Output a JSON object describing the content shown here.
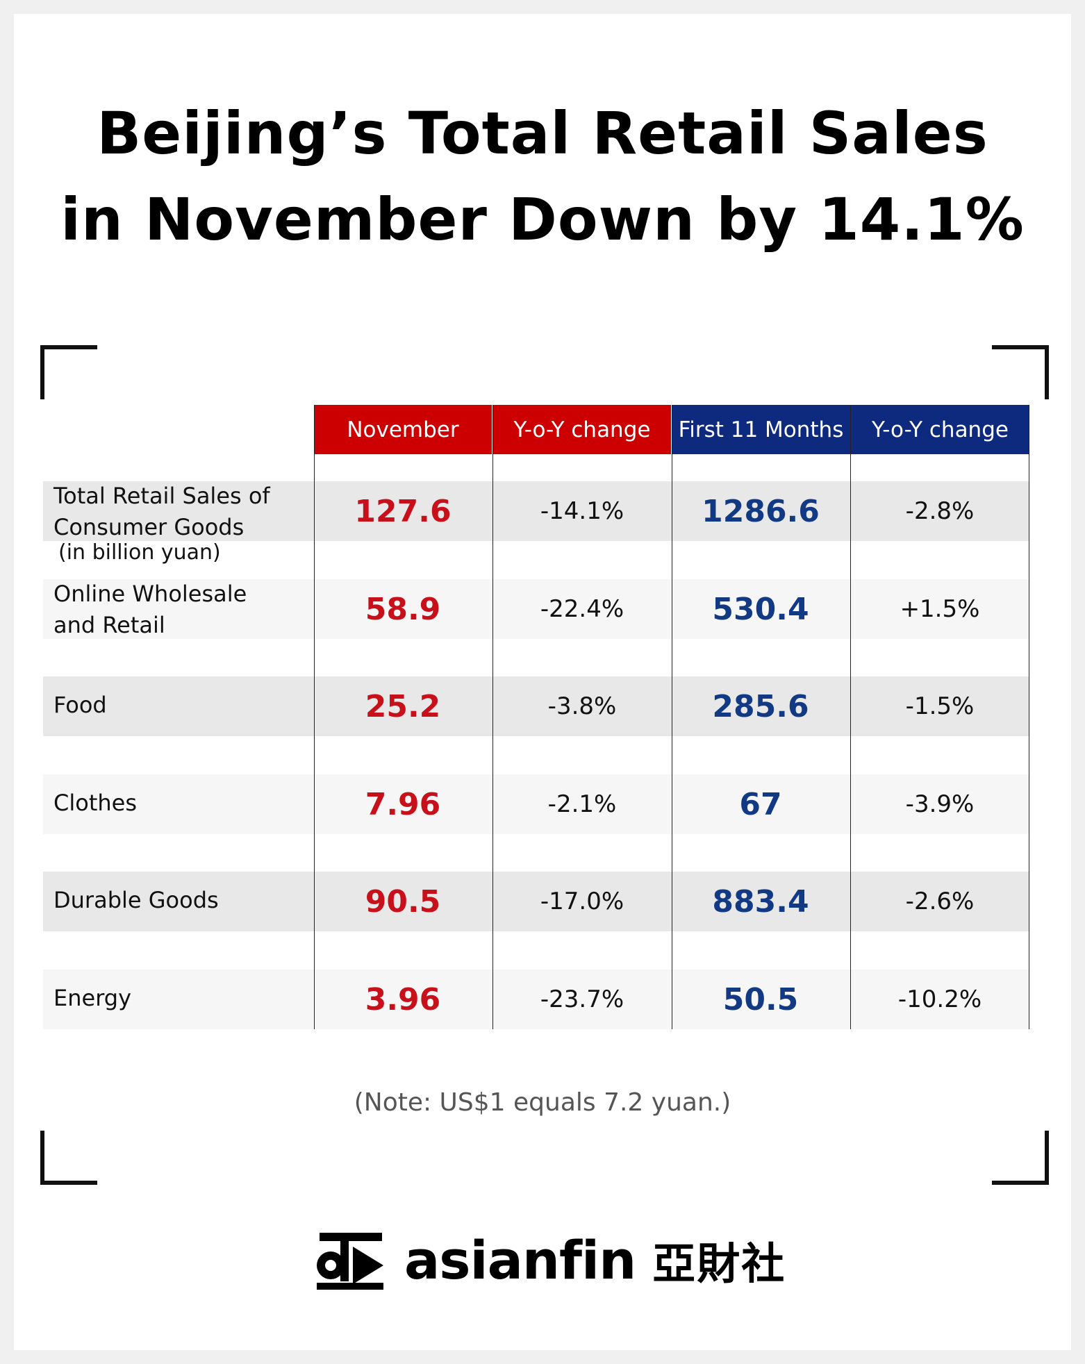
{
  "title": {
    "line1": "Beijing’s Total Retail Sales",
    "line2": "in November Down by 14.1%"
  },
  "colors": {
    "red": "#cc0000",
    "blue": "#0d2a7e",
    "red_text": "#c8101a",
    "blue_text": "#123a84"
  },
  "headers": [
    "November",
    "Y-o-Y change",
    "First 11 Months",
    "Y-o-Y change"
  ],
  "rows": [
    {
      "label_line1": "Total Retail Sales of",
      "label_line2": "Consumer Goods",
      "sublabel": "(in billion yuan)",
      "november": "127.6",
      "nov_yoy": "-14.1%",
      "first11": "1286.6",
      "first11_yoy": "-2.8%"
    },
    {
      "label_line1": "Online Wholesale",
      "label_line2": "and Retail",
      "november": "58.9",
      "nov_yoy": "-22.4%",
      "first11": "530.4",
      "first11_yoy": "+1.5%"
    },
    {
      "label_line1": "Food",
      "november": "25.2",
      "nov_yoy": "-3.8%",
      "first11": "285.6",
      "first11_yoy": "-1.5%"
    },
    {
      "label_line1": "Clothes",
      "november": "7.96",
      "nov_yoy": "-2.1%",
      "first11": "67",
      "first11_yoy": "-3.9%"
    },
    {
      "label_line1": "Durable Goods",
      "november": "90.5",
      "nov_yoy": "-17.0%",
      "first11": "883.4",
      "first11_yoy": "-2.6%"
    },
    {
      "label_line1": "Energy",
      "november": "3.96",
      "nov_yoy": "-23.7%",
      "first11": "50.5",
      "first11_yoy": "-10.2%"
    }
  ],
  "note": "(Note: US$1 equals 7.2 yuan.)",
  "brand": {
    "logo_icon": "asianfin-logo-icon",
    "name": "asianfin",
    "name_cn": "亞財社"
  },
  "chart_data": {
    "type": "table",
    "title": "Beijing’s Total Retail Sales in November Down by 14.1%",
    "columns": [
      "November",
      "Y-o-Y change",
      "First 11 Months",
      "Y-o-Y change"
    ],
    "rows": [
      {
        "category": "Total Retail Sales of Consumer Goods (in billion yuan)",
        "values": [
          127.6,
          -14.1,
          1286.6,
          -2.8
        ]
      },
      {
        "category": "Online Wholesale and Retail",
        "values": [
          58.9,
          -22.4,
          530.4,
          1.5
        ]
      },
      {
        "category": "Food",
        "values": [
          25.2,
          -3.8,
          285.6,
          -1.5
        ]
      },
      {
        "category": "Clothes",
        "values": [
          7.96,
          -2.1,
          67,
          -3.9
        ]
      },
      {
        "category": "Durable Goods",
        "values": [
          90.5,
          -17.0,
          883.4,
          -2.6
        ]
      },
      {
        "category": "Energy",
        "values": [
          3.96,
          -23.7,
          50.5,
          -10.2
        ]
      }
    ]
  }
}
